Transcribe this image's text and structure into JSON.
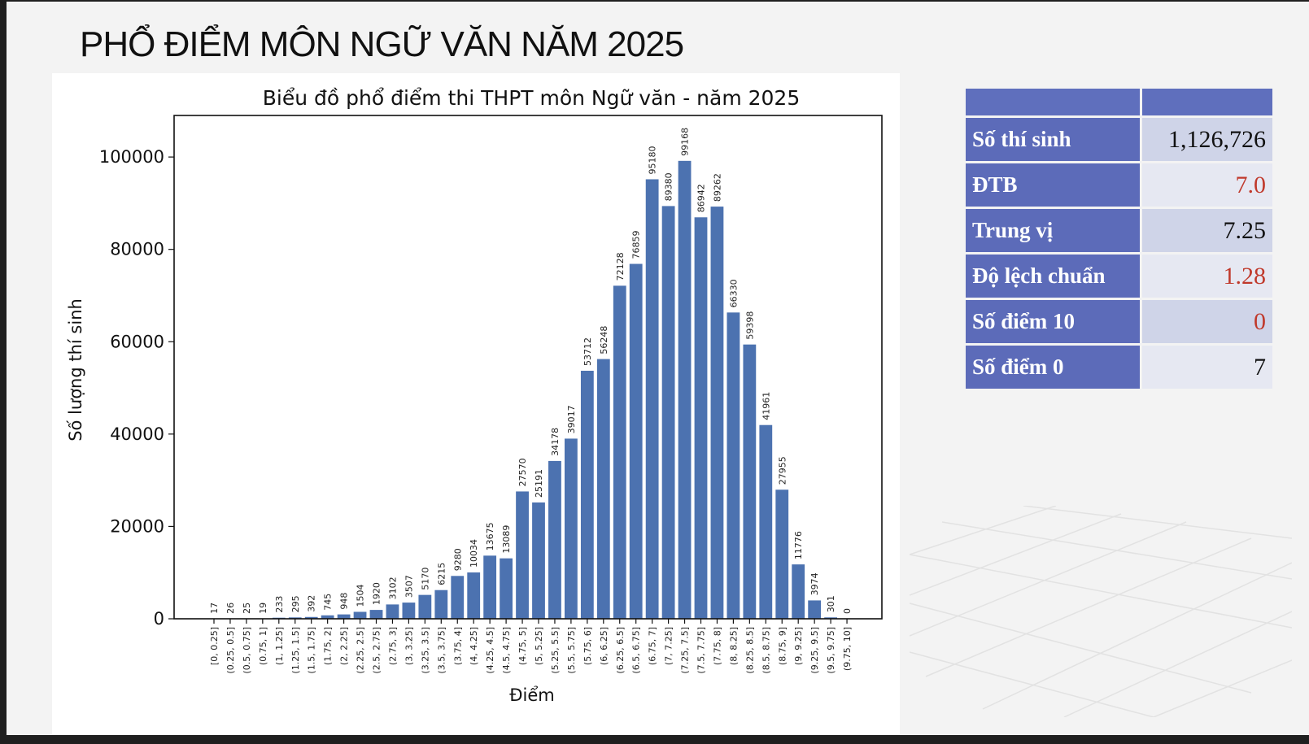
{
  "slide": {
    "title": "PHỔ ĐIỂM MÔN NGỮ VĂN NĂM 2025"
  },
  "stats": {
    "rows": [
      {
        "label": "Số thí sinh",
        "value": "1,126,726"
      },
      {
        "label": "ĐTB",
        "value": "7.0"
      },
      {
        "label": "Trung vị",
        "value": "7.25"
      },
      {
        "label": "Độ lệch chuẩn",
        "value": "1.28"
      },
      {
        "label": "Số điểm 10",
        "value": "0"
      },
      {
        "label": "Số điểm 0",
        "value": "7"
      }
    ],
    "header_color": "#5f6fbd",
    "highlight_color": "#c0392b"
  },
  "chart_data": {
    "type": "bar",
    "title": "Biểu đồ phổ điểm thi THPT môn Ngữ văn - năm 2025",
    "xlabel": "Điểm",
    "ylabel": "Số lượng thí sinh",
    "ylim": [
      0,
      109000
    ],
    "yticks": [
      0,
      20000,
      40000,
      60000,
      80000,
      100000
    ],
    "bar_color": "#4c72b0",
    "grid": false,
    "categories": [
      "[0, 0.25]",
      "(0.25, 0.5]",
      "(0.5, 0.75]",
      "(0.75, 1]",
      "(1, 1.25]",
      "(1.25, 1.5]",
      "(1.5, 1.75]",
      "(1.75, 2]",
      "(2, 2.25]",
      "(2.25, 2.5]",
      "(2.5, 2.75]",
      "(2.75, 3]",
      "(3, 3.25]",
      "(3.25, 3.5]",
      "(3.5, 3.75]",
      "(3.75, 4]",
      "(4, 4.25]",
      "(4.25, 4.5]",
      "(4.5, 4.75]",
      "(4.75, 5]",
      "(5, 5.25]",
      "(5.25, 5.5]",
      "(5.5, 5.75]",
      "(5.75, 6]",
      "(6, 6.25]",
      "(6.25, 6.5]",
      "(6.5, 6.75]",
      "(6.75, 7]",
      "(7, 7.25]",
      "(7.25, 7.5]",
      "(7.5, 7.75]",
      "(7.75, 8]",
      "(8, 8.25]",
      "(8.25, 8.5]",
      "(8.5, 8.75]",
      "(8.75, 9]",
      "(9, 9.25]",
      "(9.25, 9.5]",
      "(9.5, 9.75]",
      "(9.75, 10]"
    ],
    "values": [
      17,
      26,
      25,
      19,
      233,
      295,
      392,
      745,
      948,
      1504,
      1920,
      3102,
      3507,
      5170,
      6215,
      9280,
      10034,
      13675,
      13089,
      27570,
      25191,
      34178,
      39017,
      53712,
      56248,
      72128,
      76859,
      95180,
      89380,
      99168,
      86942,
      89262,
      66330,
      59398,
      41961,
      27955,
      11776,
      3974,
      301,
      0
    ]
  }
}
